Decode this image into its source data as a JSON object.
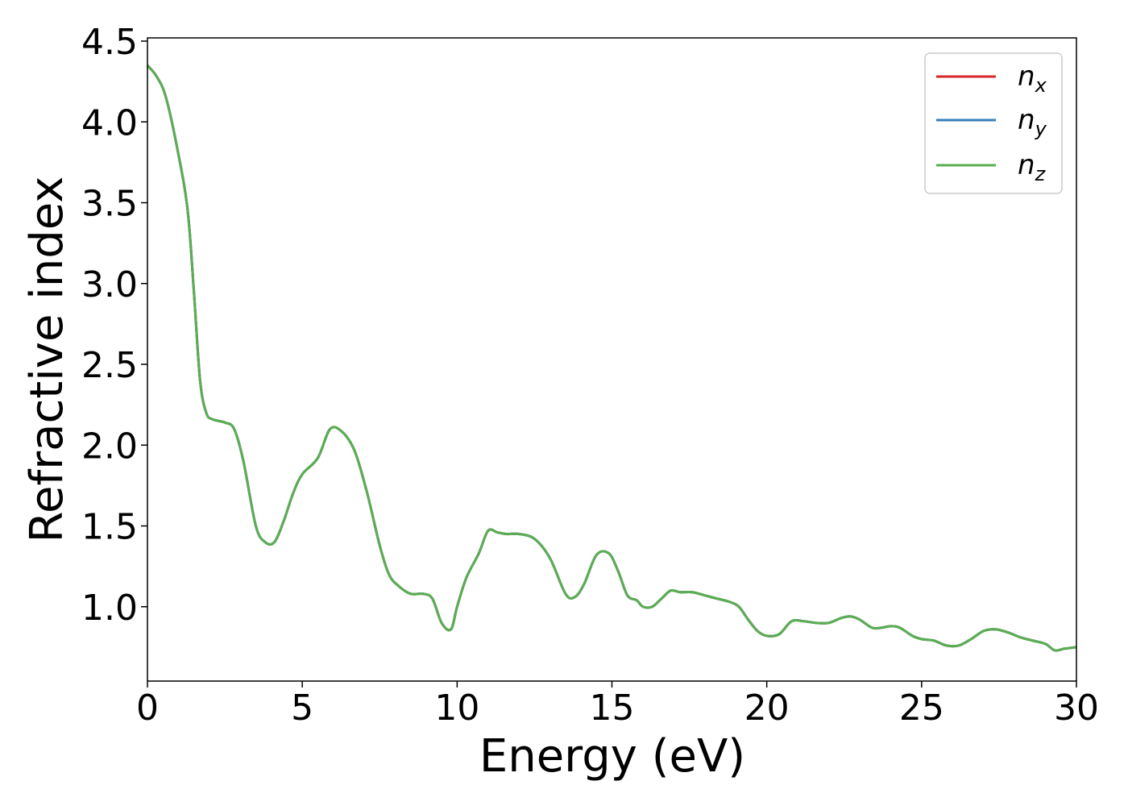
{
  "chart_data": {
    "type": "line",
    "title": "",
    "xlabel": "Energy (eV)",
    "ylabel": "Refractive index",
    "xlim": [
      0,
      30
    ],
    "ylim": [
      0.54,
      4.52
    ],
    "xticks": [
      0,
      5,
      10,
      15,
      20,
      25,
      30
    ],
    "xtick_labels": [
      "0",
      "5",
      "10",
      "15",
      "20",
      "25",
      "30"
    ],
    "yticks": [
      1.0,
      1.5,
      2.0,
      2.5,
      3.0,
      3.5,
      4.0,
      4.5
    ],
    "ytick_labels": [
      "1.0",
      "1.5",
      "2.0",
      "2.5",
      "3.0",
      "3.5",
      "4.0",
      "4.5"
    ],
    "grid": false,
    "legend_position": "top-right",
    "x": [
      0,
      0.3,
      0.6,
      1.0,
      1.3,
      1.5,
      1.7,
      1.9,
      2.1,
      2.5,
      2.8,
      3.1,
      3.5,
      3.8,
      4.1,
      4.4,
      4.7,
      5.0,
      5.5,
      5.9,
      6.3,
      6.7,
      7.1,
      7.5,
      7.8,
      8.1,
      8.5,
      8.9,
      9.2,
      9.5,
      9.8,
      10.0,
      10.3,
      10.7,
      11.0,
      11.3,
      11.6,
      12.0,
      12.5,
      13.0,
      13.5,
      13.8,
      14.1,
      14.5,
      14.9,
      15.2,
      15.5,
      15.8,
      16.0,
      16.3,
      16.6,
      16.9,
      17.2,
      17.6,
      18.0,
      18.4,
      18.8,
      19.1,
      19.4,
      19.7,
      20.0,
      20.4,
      20.8,
      21.2,
      21.6,
      22.0,
      22.4,
      22.7,
      23.0,
      23.4,
      23.7,
      24.0,
      24.3,
      24.7,
      25.0,
      25.4,
      25.8,
      26.2,
      26.6,
      27.0,
      27.4,
      27.8,
      28.2,
      28.6,
      29.0,
      29.3,
      29.6,
      30.0
    ],
    "series": [
      {
        "name": "n_x",
        "color": "#d62728",
        "y": [
          4.35,
          4.28,
          4.15,
          3.8,
          3.45,
          2.95,
          2.4,
          2.2,
          2.16,
          2.14,
          2.1,
          1.9,
          1.5,
          1.4,
          1.4,
          1.53,
          1.7,
          1.82,
          1.92,
          2.1,
          2.08,
          1.96,
          1.7,
          1.38,
          1.2,
          1.13,
          1.08,
          1.08,
          1.05,
          0.9,
          0.86,
          1.0,
          1.18,
          1.33,
          1.47,
          1.46,
          1.45,
          1.45,
          1.42,
          1.3,
          1.08,
          1.06,
          1.14,
          1.32,
          1.33,
          1.22,
          1.07,
          1.04,
          1.0,
          1.0,
          1.05,
          1.1,
          1.09,
          1.09,
          1.07,
          1.05,
          1.03,
          1.0,
          0.92,
          0.85,
          0.82,
          0.83,
          0.91,
          0.91,
          0.9,
          0.9,
          0.93,
          0.94,
          0.92,
          0.87,
          0.87,
          0.88,
          0.87,
          0.82,
          0.8,
          0.79,
          0.76,
          0.76,
          0.8,
          0.85,
          0.86,
          0.84,
          0.81,
          0.79,
          0.77,
          0.73,
          0.74,
          0.75
        ]
      },
      {
        "name": "n_y",
        "color": "#377eb8",
        "y": [
          4.35,
          4.28,
          4.15,
          3.8,
          3.45,
          2.95,
          2.4,
          2.2,
          2.16,
          2.14,
          2.1,
          1.9,
          1.5,
          1.4,
          1.4,
          1.53,
          1.7,
          1.82,
          1.92,
          2.1,
          2.08,
          1.96,
          1.7,
          1.38,
          1.2,
          1.13,
          1.08,
          1.08,
          1.05,
          0.9,
          0.86,
          1.0,
          1.18,
          1.33,
          1.47,
          1.46,
          1.45,
          1.45,
          1.42,
          1.3,
          1.08,
          1.06,
          1.14,
          1.32,
          1.33,
          1.22,
          1.07,
          1.04,
          1.0,
          1.0,
          1.05,
          1.1,
          1.09,
          1.09,
          1.07,
          1.05,
          1.03,
          1.0,
          0.92,
          0.85,
          0.82,
          0.83,
          0.91,
          0.91,
          0.9,
          0.9,
          0.93,
          0.94,
          0.92,
          0.87,
          0.87,
          0.88,
          0.87,
          0.82,
          0.8,
          0.79,
          0.76,
          0.76,
          0.8,
          0.85,
          0.86,
          0.84,
          0.81,
          0.79,
          0.77,
          0.73,
          0.74,
          0.75
        ]
      },
      {
        "name": "n_z",
        "color": "#5aae52",
        "y": [
          4.35,
          4.28,
          4.15,
          3.8,
          3.45,
          2.95,
          2.4,
          2.2,
          2.16,
          2.14,
          2.1,
          1.9,
          1.5,
          1.4,
          1.4,
          1.53,
          1.7,
          1.82,
          1.92,
          2.1,
          2.08,
          1.96,
          1.7,
          1.38,
          1.2,
          1.13,
          1.08,
          1.08,
          1.05,
          0.9,
          0.86,
          1.0,
          1.18,
          1.33,
          1.47,
          1.46,
          1.45,
          1.45,
          1.42,
          1.3,
          1.08,
          1.06,
          1.14,
          1.32,
          1.33,
          1.22,
          1.07,
          1.04,
          1.0,
          1.0,
          1.05,
          1.1,
          1.09,
          1.09,
          1.07,
          1.05,
          1.03,
          1.0,
          0.92,
          0.85,
          0.82,
          0.83,
          0.91,
          0.91,
          0.9,
          0.9,
          0.93,
          0.94,
          0.92,
          0.87,
          0.87,
          0.88,
          0.87,
          0.82,
          0.8,
          0.79,
          0.76,
          0.76,
          0.8,
          0.85,
          0.86,
          0.84,
          0.81,
          0.79,
          0.77,
          0.73,
          0.74,
          0.75
        ]
      }
    ],
    "legend": [
      {
        "base": "n",
        "sub": "x",
        "color": "#d62728"
      },
      {
        "base": "n",
        "sub": "y",
        "color": "#377eb8"
      },
      {
        "base": "n",
        "sub": "z",
        "color": "#5aae52"
      }
    ]
  }
}
